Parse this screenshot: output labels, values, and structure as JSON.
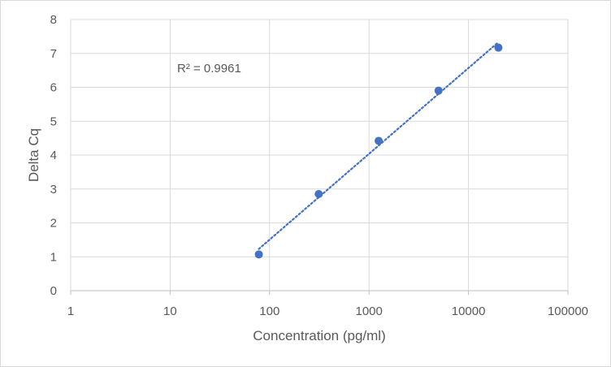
{
  "chart_data": {
    "type": "scatter",
    "title": "",
    "xlabel": "Concentration (pg/ml)",
    "ylabel": "Delta Cq",
    "x_scale": "log",
    "xlim": [
      1,
      100000
    ],
    "ylim": [
      0,
      8
    ],
    "x_ticks": [
      1,
      10,
      100,
      1000,
      10000,
      100000
    ],
    "x_tick_labels": [
      "1",
      "10",
      "100",
      "1000",
      "10000",
      "100000"
    ],
    "y_ticks": [
      0,
      1,
      2,
      3,
      4,
      5,
      6,
      7,
      8
    ],
    "y_tick_labels": [
      "0",
      "1",
      "2",
      "3",
      "4",
      "5",
      "6",
      "7",
      "8"
    ],
    "grid": true,
    "legend": "none",
    "series": [
      {
        "points": [
          {
            "x": 78,
            "y": 1.07
          },
          {
            "x": 312,
            "y": 2.85
          },
          {
            "x": 1250,
            "y": 4.42
          },
          {
            "x": 5000,
            "y": 5.9
          },
          {
            "x": 20000,
            "y": 7.17
          }
        ],
        "color": "#4472c4",
        "trendline": "logarithmic",
        "trendline_style": "dotted"
      }
    ],
    "annotation": "R² = 0.9961"
  }
}
